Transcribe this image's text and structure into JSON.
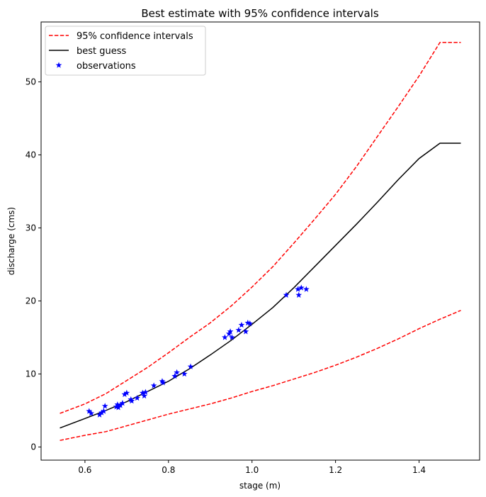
{
  "chart_data": {
    "type": "line",
    "title": "Best estimate with 95% confidence intervals",
    "xlabel": "stage (m)",
    "ylabel": "discharge (cms)",
    "xlim": [
      0.495,
      1.545
    ],
    "ylim": [
      -1.8,
      58.2
    ],
    "xticks": [
      0.6,
      0.8,
      1.0,
      1.2,
      1.4
    ],
    "xtick_labels": [
      "0.6",
      "0.8",
      "1.0",
      "1.2",
      "1.4"
    ],
    "yticks": [
      0,
      10,
      20,
      30,
      40,
      50
    ],
    "ytick_labels": [
      "0",
      "10",
      "20",
      "30",
      "40",
      "50"
    ],
    "grid": false,
    "legend_position": "top-left",
    "series": [
      {
        "name": "95% confidence intervals",
        "kind": "line",
        "style": "dashed",
        "color": "#ff0000",
        "segments": [
          {
            "x": [
              0.54,
              0.6,
              0.65,
              0.7,
              0.75,
              0.8,
              0.85,
              0.9,
              0.95,
              1.0,
              1.05,
              1.1,
              1.15,
              1.2,
              1.25,
              1.3,
              1.35,
              1.4,
              1.45,
              1.5
            ],
            "y": [
              4.6,
              5.9,
              7.3,
              9.1,
              10.9,
              12.9,
              15.0,
              17.0,
              19.3,
              21.9,
              24.7,
              27.9,
              31.2,
              34.6,
              38.4,
              42.5,
              46.6,
              50.8,
              55.4,
              55.4
            ]
          },
          {
            "x": [
              0.54,
              0.6,
              0.65,
              0.7,
              0.75,
              0.8,
              0.85,
              0.9,
              0.95,
              1.0,
              1.05,
              1.1,
              1.15,
              1.2,
              1.25,
              1.3,
              1.35,
              1.4,
              1.45,
              1.5
            ],
            "y": [
              0.9,
              1.6,
              2.1,
              2.9,
              3.7,
              4.5,
              5.2,
              5.9,
              6.7,
              7.6,
              8.4,
              9.3,
              10.2,
              11.2,
              12.3,
              13.5,
              14.8,
              16.2,
              17.5,
              18.7
            ]
          }
        ]
      },
      {
        "name": "best guess",
        "kind": "line",
        "style": "solid",
        "color": "#000000",
        "x": [
          0.54,
          0.6,
          0.65,
          0.7,
          0.75,
          0.8,
          0.85,
          0.9,
          0.95,
          1.0,
          1.05,
          1.1,
          1.15,
          1.2,
          1.25,
          1.3,
          1.35,
          1.4,
          1.45,
          1.5
        ],
        "y": [
          2.6,
          3.9,
          5.0,
          6.2,
          7.6,
          9.0,
          10.7,
          12.6,
          14.6,
          16.8,
          19.1,
          21.8,
          24.7,
          27.6,
          30.5,
          33.5,
          36.6,
          39.5,
          41.6,
          41.6
        ]
      },
      {
        "name": "observations",
        "kind": "scatter",
        "marker": "star",
        "color": "#0000ff",
        "x": [
          0.61,
          0.615,
          0.635,
          0.64,
          0.645,
          0.648,
          0.675,
          0.678,
          0.68,
          0.685,
          0.69,
          0.695,
          0.7,
          0.71,
          0.712,
          0.725,
          0.738,
          0.742,
          0.745,
          0.765,
          0.785,
          0.787,
          0.815,
          0.82,
          0.838,
          0.853,
          0.935,
          0.945,
          0.948,
          0.952,
          0.968,
          0.975,
          0.985,
          0.99,
          0.995,
          1.082,
          1.11,
          1.112,
          1.118,
          1.13
        ],
        "y": [
          4.9,
          4.6,
          4.4,
          4.7,
          4.9,
          5.6,
          5.5,
          5.8,
          5.4,
          5.7,
          6.0,
          7.2,
          7.4,
          6.5,
          6.3,
          6.7,
          7.4,
          7.0,
          7.5,
          8.4,
          9.0,
          8.8,
          9.7,
          10.2,
          10.0,
          11.0,
          15.0,
          15.5,
          15.8,
          15.0,
          16.0,
          16.7,
          15.8,
          17.0,
          16.9,
          20.8,
          21.6,
          20.8,
          21.8,
          21.6
        ]
      }
    ]
  }
}
